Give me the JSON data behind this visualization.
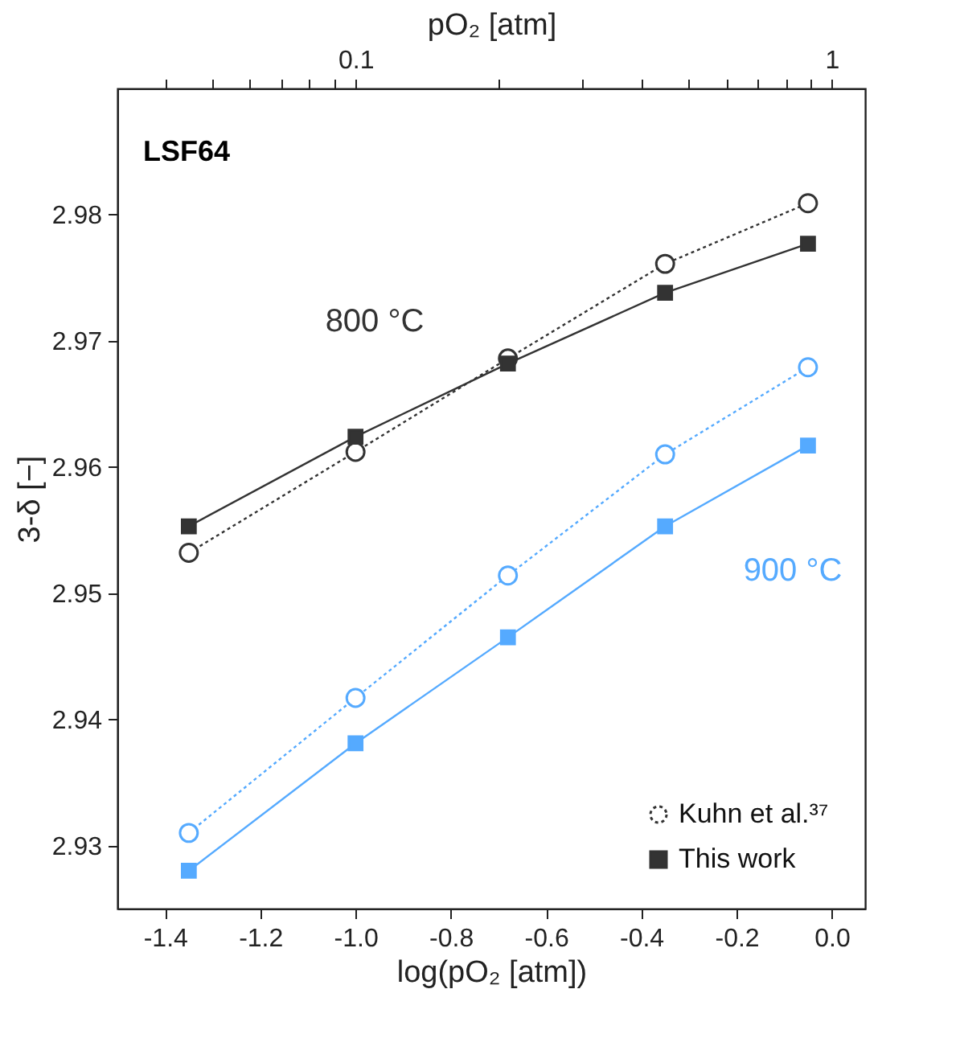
{
  "chart_data": {
    "type": "line",
    "xlabel": "log(pO₂ [atm])",
    "ylabel": "3-δ [−]",
    "x2label": "pO₂ [atm]",
    "x": [
      -1.35,
      -1.0,
      -0.68,
      -0.35,
      -0.05
    ],
    "series": [
      {
        "name": "Kuhn et al.³⁷",
        "color": "#333333",
        "marker": "circle",
        "line_style": "dotted",
        "values": [
          2.9532,
          2.9612,
          2.9686,
          2.9761,
          2.9809
        ]
      },
      {
        "name": "This work",
        "color": "#333333",
        "marker": "square",
        "line_style": "solid",
        "values": [
          2.9553,
          2.9624,
          2.9682,
          2.9738,
          2.9777
        ]
      },
      {
        "color": "#55aaff",
        "marker": "circle",
        "line_style": "dotted",
        "values": [
          2.931,
          2.9417,
          2.9514,
          2.961,
          2.9679
        ]
      },
      {
        "color": "#55aaff",
        "marker": "square",
        "line_style": "solid",
        "values": [
          2.928,
          2.9381,
          2.9465,
          2.9553,
          2.9617
        ]
      }
    ],
    "xlim": [
      -1.5,
      0.07
    ],
    "ylim": [
      2.925,
      2.99
    ],
    "xticks": [
      -1.4,
      -1.2,
      {
        "value": -1,
        "label": "-1.0"
      },
      -0.8,
      -0.6,
      -0.4,
      -0.2,
      {
        "value": 0,
        "label": "0.0"
      }
    ],
    "yticks": [
      2.93,
      2.94,
      2.95,
      2.96,
      2.97,
      2.98
    ],
    "x2lim": [
      0.0316,
      1.175
    ],
    "log": "x2",
    "x2ticks": [
      {
        "value": 0.04,
        "label": null
      },
      {
        "value": 0.05,
        "label": null
      },
      {
        "value": 0.06,
        "label": null
      },
      {
        "value": 0.07,
        "label": null
      },
      {
        "value": 0.08,
        "label": null
      },
      {
        "value": 0.09,
        "label": null
      },
      0.1,
      {
        "value": 0.2,
        "label": null
      },
      {
        "value": 0.3,
        "label": null
      },
      {
        "value": 0.4,
        "label": null
      },
      {
        "value": 0.5,
        "label": null
      },
      {
        "value": 0.6,
        "label": null
      },
      {
        "value": 0.7,
        "label": null
      },
      {
        "value": 0.8,
        "label": null
      },
      {
        "value": 0.9,
        "label": null
      },
      1
    ],
    "annotations": [
      "LSF64",
      "800 °C",
      "900 °C"
    ],
    "legend": "bottom right"
  }
}
